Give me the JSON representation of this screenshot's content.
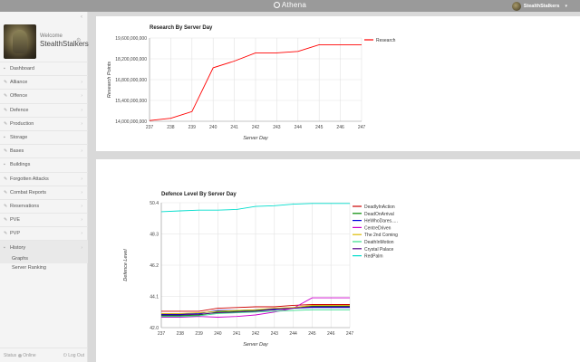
{
  "app": {
    "name": "Athena"
  },
  "user": {
    "name": "StealthStalkers"
  },
  "sidebar": {
    "welcome": "Welcome",
    "username": "StealthStalkers",
    "items": [
      {
        "label": "Dashboard",
        "icon": "dashboard-icon",
        "chevron": false
      },
      {
        "label": "Alliance",
        "icon": "alliance-icon",
        "chevron": true
      },
      {
        "label": "Offence",
        "icon": "offence-icon",
        "chevron": true
      },
      {
        "label": "Defence",
        "icon": "defence-icon",
        "chevron": true
      },
      {
        "label": "Production",
        "icon": "production-icon",
        "chevron": true
      },
      {
        "label": "Storage",
        "icon": "storage-icon",
        "chevron": false
      },
      {
        "label": "Bases",
        "icon": "bases-icon",
        "chevron": true
      },
      {
        "label": "Buildings",
        "icon": "buildings-icon",
        "chevron": false
      },
      {
        "label": "Forgotten Attacks",
        "icon": "forgotten-attacks-icon",
        "chevron": true
      },
      {
        "label": "Combat Reports",
        "icon": "combat-reports-icon",
        "chevron": true
      },
      {
        "label": "Reservations",
        "icon": "reservations-icon",
        "chevron": true
      },
      {
        "label": "PVE",
        "icon": "pve-icon",
        "chevron": true
      },
      {
        "label": "PVP",
        "icon": "pvp-icon",
        "chevron": true
      },
      {
        "label": "History",
        "icon": "history-icon",
        "chevron": true
      }
    ],
    "subitems": [
      "Graphs",
      "Server Ranking"
    ],
    "status_label": "Status",
    "status_value": "Online",
    "logout": "Log Out"
  },
  "chart_data": [
    {
      "type": "line",
      "title": "Research By Server Day",
      "xlabel": "Server Day",
      "ylabel": "Research Points",
      "x": [
        237,
        238,
        239,
        240,
        241,
        242,
        243,
        244,
        245,
        246,
        247
      ],
      "ylim": [
        14000000000,
        19600000000
      ],
      "yticks": [
        14000000000,
        15400000000,
        16800000000,
        18200000000,
        19600000000
      ],
      "ytick_labels": [
        "14,000,000,000",
        "15,400,000,000",
        "16,800,000,000",
        "18,200,000,000",
        "19,600,000,000"
      ],
      "grid": true,
      "legend": "right",
      "series": [
        {
          "name": "Research",
          "color": "#ff0000",
          "values": [
            14050000000,
            14200000000,
            14650000000,
            17600000000,
            18050000000,
            18600000000,
            18600000000,
            18700000000,
            19150000000,
            19150000000,
            19150000000
          ]
        }
      ]
    },
    {
      "type": "line",
      "title": "Defence Level By Server Day",
      "xlabel": "Server Day",
      "ylabel": "Defence Level",
      "x": [
        237,
        238,
        239,
        240,
        241,
        242,
        243,
        244,
        245,
        246,
        247
      ],
      "ylim": [
        42.0,
        50.4
      ],
      "yticks": [
        42.0,
        44.1,
        46.2,
        48.3,
        50.4
      ],
      "ytick_labels": [
        "42.0",
        "44.1",
        "46.2",
        "48.3",
        "50.4"
      ],
      "grid": true,
      "legend": "right",
      "series": [
        {
          "name": "DeadlyInAction",
          "color": "#cc0000",
          "values": [
            43.1,
            43.1,
            43.1,
            43.3,
            43.35,
            43.4,
            43.4,
            43.5,
            43.55,
            43.55,
            43.55
          ]
        },
        {
          "name": "DeadOnArrival",
          "color": "#008800",
          "values": [
            42.8,
            42.8,
            42.85,
            43.05,
            43.1,
            43.15,
            43.2,
            43.3,
            43.45,
            43.45,
            43.45
          ]
        },
        {
          "name": "HeWhoDares.....",
          "color": "#0000dd",
          "values": [
            42.9,
            42.9,
            42.95,
            43.15,
            43.15,
            43.2,
            43.25,
            43.3,
            43.35,
            43.35,
            43.35
          ]
        },
        {
          "name": "CentreDriven",
          "color": "#cc00cc",
          "values": [
            42.7,
            42.7,
            42.75,
            42.7,
            42.75,
            42.85,
            43.05,
            43.3,
            44.0,
            44.0,
            44.0
          ]
        },
        {
          "name": "The 2nd Coming",
          "color": "#ddbb00",
          "values": [
            42.95,
            42.95,
            43.0,
            43.1,
            43.15,
            43.2,
            43.3,
            43.35,
            43.5,
            43.5,
            43.5
          ]
        },
        {
          "name": "DeathInMotion",
          "color": "#33dd88",
          "values": [
            42.75,
            42.75,
            42.8,
            42.95,
            43.0,
            43.05,
            43.1,
            43.15,
            43.2,
            43.2,
            43.2
          ]
        },
        {
          "name": "Crystal Palace",
          "color": "#550088",
          "values": [
            42.85,
            42.85,
            42.9,
            43.0,
            43.05,
            43.1,
            43.2,
            43.3,
            43.4,
            43.4,
            43.4
          ]
        },
        {
          "name": "RedPalm",
          "color": "#00ddcc",
          "values": [
            49.8,
            49.85,
            49.9,
            49.9,
            49.95,
            50.15,
            50.2,
            50.3,
            50.35,
            50.35,
            50.35
          ]
        }
      ]
    }
  ]
}
